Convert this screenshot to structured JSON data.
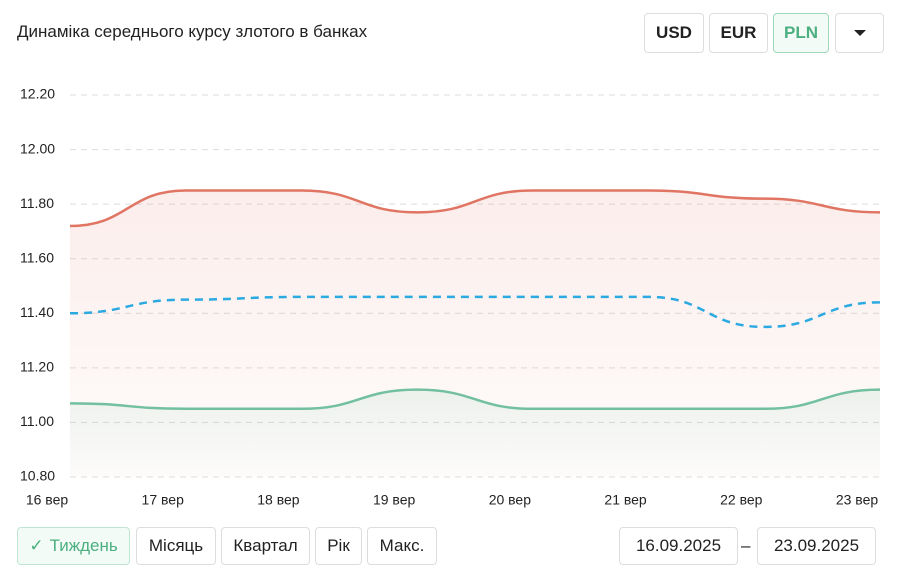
{
  "chart_data": {
    "type": "line",
    "title": "Динаміка середнього курсу злотого в банках",
    "categories": [
      "16 вер",
      "17 вер",
      "18 вер",
      "19 вер",
      "20 вер",
      "21 вер",
      "22 вер",
      "23 вер"
    ],
    "series": [
      {
        "color": "#e07563",
        "values": [
          11.72,
          11.85,
          11.85,
          11.77,
          11.85,
          11.85,
          11.82,
          11.77
        ]
      },
      {
        "color": "#2ba9e1",
        "dashed": true,
        "values": [
          11.4,
          11.45,
          11.46,
          11.46,
          11.46,
          11.46,
          11.35,
          11.44
        ]
      },
      {
        "color": "#72c0a0",
        "values": [
          11.07,
          11.05,
          11.05,
          11.12,
          11.05,
          11.05,
          11.05,
          11.12
        ]
      }
    ],
    "ylim": [
      10.8,
      12.2
    ],
    "yticks": [
      {
        "value": 10.8,
        "label": "10.80"
      },
      {
        "value": 11.0,
        "label": "11.00"
      },
      {
        "value": 11.2,
        "label": "11.20"
      },
      {
        "value": 11.4,
        "label": "11.40"
      },
      {
        "value": 11.6,
        "label": "11.60"
      },
      {
        "value": 11.8,
        "label": "11.80"
      },
      {
        "value": 12.0,
        "label": "12.00"
      },
      {
        "value": 12.2,
        "label": "12.20"
      }
    ],
    "grid": true
  },
  "currency_buttons": [
    "USD",
    "EUR",
    "PLN"
  ],
  "active_currency": 2,
  "period_buttons": [
    "Тиждень",
    "Місяць",
    "Квартал",
    "Рік",
    "Макс."
  ],
  "active_period": 0,
  "date_from": "16.09.2025",
  "date_separator": "–",
  "date_to": "23.09.2025"
}
